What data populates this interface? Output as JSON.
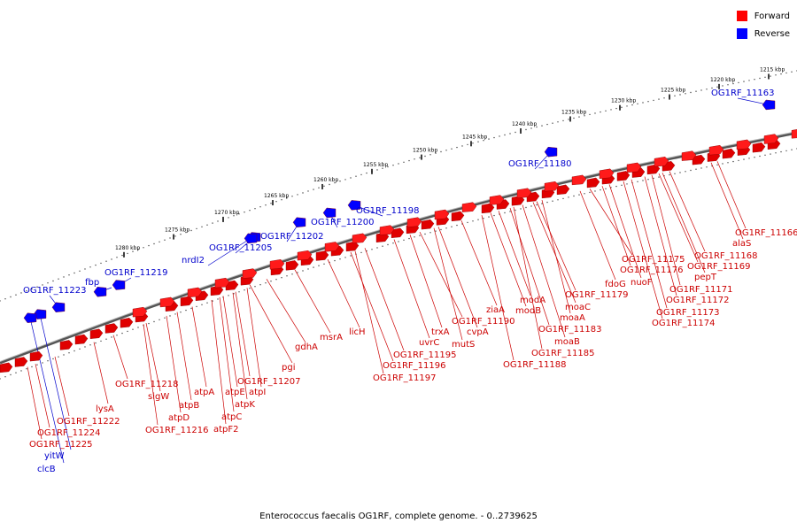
{
  "legend": {
    "forward_label": "Forward",
    "reverse_label": "Reverse",
    "forward_color": "#ff0000",
    "reverse_color": "#0000ff"
  },
  "caption": "Enterococcus faecalis OG1RF, complete genome. - 0..2739625",
  "colors": {
    "forward_label": "#cc0000",
    "reverse_label": "#0000cc"
  },
  "ticks": [
    "1215 kbp",
    "1220 kbp",
    "1225 kbp",
    "1230 kbp",
    "1235 kbp",
    "1240 kbp",
    "1245 kbp",
    "1250 kbp",
    "1255 kbp",
    "1260 kbp",
    "1265 kbp",
    "1270 kbp",
    "1275 kbp",
    "1280 kbp"
  ],
  "reverse_genes": [
    "OG1RF_11163",
    "OG1RF_11180",
    "OG1RF_11198",
    "OG1RF_11200",
    "OG1RF_11202",
    "OG1RF_11205",
    "nrdI2",
    "OG1RF_11219",
    "fbp",
    "OG1RF_11223",
    "yitW",
    "clcB"
  ],
  "forward_genes_upper": [
    "OG1RF_11166",
    "alaS",
    "OG1RF_11168",
    "OG1RF_11169",
    "pepT",
    "OG1RF_11171",
    "OG1RF_11172",
    "OG1RF_11173",
    "OG1RF_11174",
    "OG1RF_11175",
    "OG1RF_11176",
    "nuoF",
    "fdoG",
    "OG1RF_11179",
    "moaC",
    "moaA",
    "modA",
    "modB",
    "OG1RF_11183",
    "moaB",
    "OG1RF_11185",
    "OG1RF_11188",
    "ziaA",
    "cvpA",
    "OG1RF_11190",
    "mutS",
    "trxA",
    "uvrC",
    "OG1RF_11195",
    "OG1RF_11196",
    "OG1RF_11197",
    "licH",
    "msrA",
    "gdhA",
    "pgi"
  ],
  "forward_genes_lower": [
    "OG1RF_11207",
    "atpI",
    "atpK",
    "atpE",
    "atpC",
    "atpF2",
    "atpA",
    "atpB",
    "atpD",
    "OG1RF_11216",
    "sigW",
    "OG1RF_11218",
    "lysA",
    "OG1RF_11222",
    "OG1RF_11224",
    "OG1RF_11225"
  ]
}
